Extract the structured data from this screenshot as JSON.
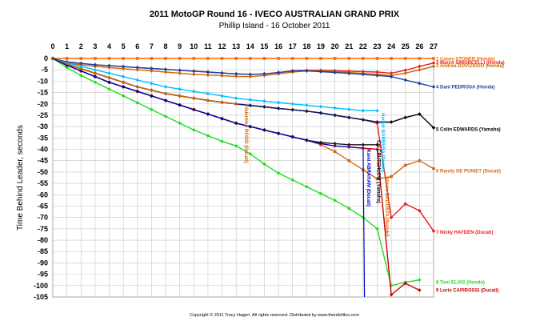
{
  "chart_data": {
    "type": "line",
    "title": "2011 MotoGP Round 16 - IVECO AUSTRALIAN GRAND PRIX",
    "subtitle": "Phillip Island - 16 October 2011",
    "ylabel": "Time Behind Leader, seconds",
    "xlim": [
      0,
      27
    ],
    "ylim": [
      -105,
      0
    ],
    "xticks": [
      0,
      1,
      2,
      3,
      4,
      5,
      6,
      7,
      8,
      9,
      10,
      11,
      12,
      13,
      14,
      15,
      16,
      17,
      18,
      19,
      20,
      21,
      22,
      23,
      24,
      25,
      26,
      27
    ],
    "yticks": [
      0,
      -5,
      -10,
      -15,
      -20,
      -25,
      -30,
      -35,
      -40,
      -45,
      -50,
      -55,
      -60,
      -65,
      -70,
      -75,
      -80,
      -85,
      -90,
      -95,
      -100,
      -105
    ],
    "grid": true,
    "copyright": "Copyright © 2011 Tracy Hagen. All rights reserved. Distributed by www.theridefiles.com",
    "series": [
      {
        "name": "1 Casey STONER (Honda)",
        "color": "#ff6600",
        "marker": "square",
        "end_label_y": -0.2,
        "x": [
          0,
          1,
          2,
          3,
          4,
          5,
          6,
          7,
          8,
          9,
          10,
          11,
          12,
          13,
          14,
          15,
          16,
          17,
          18,
          19,
          20,
          21,
          22,
          23,
          24,
          25,
          26,
          27
        ],
        "y": [
          0,
          0,
          0,
          0,
          0,
          0,
          0,
          0,
          0,
          0,
          0,
          0,
          0,
          0,
          0,
          0,
          0,
          0,
          0,
          0,
          0,
          0,
          0,
          0,
          0,
          0,
          0,
          0
        ]
      },
      {
        "name": "2 Marco SIMONCELLI (Honda)",
        "color": "#ee1c1c",
        "marker": "diamond",
        "end_label_y": -1.7,
        "x": [
          0,
          1,
          2,
          3,
          4,
          5,
          6,
          7,
          8,
          9,
          10,
          11,
          12,
          13,
          14,
          15,
          16,
          17,
          18,
          19,
          20,
          21,
          22,
          23,
          24,
          25,
          26,
          27
        ],
        "y": [
          0,
          -1.5,
          -2.2,
          -2.8,
          -3.2,
          -3.6,
          -4,
          -4.4,
          -4.8,
          -5.2,
          -5.6,
          -6,
          -6.4,
          -6.8,
          -7,
          -6.8,
          -6.2,
          -5.5,
          -5.2,
          -5.2,
          -5.4,
          -5.6,
          -5.8,
          -6,
          -6.5,
          -5.2,
          -3.5,
          -2
        ]
      },
      {
        "name": "3 Andrea DOVIZIOSO (Honda)",
        "color": "#cc6600",
        "marker": "diamond",
        "end_label_y": -3.2,
        "x": [
          0,
          1,
          2,
          3,
          4,
          5,
          6,
          7,
          8,
          9,
          10,
          11,
          12,
          13,
          14,
          15,
          16,
          17,
          18,
          19,
          20,
          21,
          22,
          23,
          24,
          25,
          26,
          27
        ],
        "y": [
          0,
          -2,
          -2.8,
          -3.5,
          -4,
          -4.5,
          -5,
          -5.5,
          -6,
          -6.5,
          -7,
          -7.3,
          -7.6,
          -7.9,
          -8,
          -7.5,
          -6.8,
          -6,
          -5.5,
          -5.5,
          -5.8,
          -6.2,
          -6.6,
          -7,
          -7.5,
          -6.5,
          -5,
          -3.5
        ]
      },
      {
        "name": "4 Dani PEDROSA (Honda)",
        "color": "#1f3fa0",
        "marker": "diamond",
        "end_label_y": -12.5,
        "x": [
          0,
          1,
          2,
          3,
          4,
          5,
          6,
          7,
          8,
          9,
          10,
          11,
          12,
          13,
          14,
          15,
          16,
          17,
          18,
          19,
          20,
          21,
          22,
          23,
          24,
          25,
          26,
          27
        ],
        "y": [
          0,
          -1.5,
          -2.2,
          -2.8,
          -3.2,
          -3.6,
          -4,
          -4.4,
          -4.8,
          -5.2,
          -5.6,
          -6,
          -6.4,
          -6.8,
          -7,
          -6.8,
          -6.2,
          -5.5,
          -5.5,
          -5.8,
          -6.2,
          -6.6,
          -7,
          -7.5,
          -8,
          -9.5,
          -11,
          -12.5
        ]
      },
      {
        "name": "5 Colin EDWARDS (Yamaha)",
        "color": "#000000",
        "marker": "diamond",
        "end_label_y": -31.2,
        "x": [
          0,
          1,
          2,
          3,
          4,
          5,
          6,
          7,
          8,
          9,
          10,
          11,
          12,
          13,
          14,
          15,
          16,
          17,
          18,
          19,
          20,
          21,
          22,
          23,
          24,
          25,
          26,
          27
        ],
        "y": [
          0,
          -2.5,
          -4.5,
          -6.5,
          -8.5,
          -10.5,
          -12.5,
          -14,
          -15.5,
          -16.5,
          -17.5,
          -18.5,
          -19.3,
          -20,
          -20.7,
          -21.3,
          -22,
          -22.6,
          -23.2,
          -24,
          -25,
          -26,
          -27,
          -28,
          -28,
          -26,
          -24.5,
          -30.5
        ]
      },
      {
        "name": "6 Randy DE PUNIET (Ducati)",
        "color": "#d2691e",
        "marker": "circle",
        "end_label_y": -49.5,
        "x": [
          0,
          1,
          2,
          3,
          4,
          5,
          6,
          7,
          8,
          9,
          10,
          11,
          12,
          13,
          14,
          15,
          16,
          17,
          18,
          19,
          20,
          21,
          22,
          23,
          24,
          25,
          26,
          27
        ],
        "y": [
          0,
          -3,
          -5.5,
          -8,
          -10.5,
          -12.5,
          -14.5,
          -16.5,
          -18.5,
          -20.5,
          -22.5,
          -24.5,
          -26.5,
          -28.5,
          -30,
          -31.5,
          -33,
          -34.5,
          -36,
          -38,
          -41,
          -45,
          -49,
          -53,
          -52,
          -47,
          -45,
          -48.5
        ]
      },
      {
        "name": "7 Nicky HAYDEN (Ducati)",
        "color": "#ee1c1c",
        "marker": "diamond",
        "end_label_y": -76.5,
        "x": [
          0,
          1,
          2,
          3,
          4,
          5,
          6,
          7,
          8,
          9,
          10,
          11,
          12,
          13,
          14,
          15,
          16,
          17,
          18,
          19,
          20,
          21,
          22,
          23,
          24,
          25,
          26,
          27
        ],
        "y": [
          0,
          -2.5,
          -4.5,
          -6.5,
          -8.5,
          -10.5,
          -12.5,
          -14,
          -15.5,
          -16.5,
          -17.5,
          -18.5,
          -19.3,
          -20,
          -20.7,
          -21.3,
          -22,
          -22.6,
          -23.2,
          -24,
          -25,
          -26,
          -27,
          -28.5,
          -70,
          -64,
          -67,
          -76
        ]
      },
      {
        "name": "8 Toni ELIAS (Honda)",
        "color": "#22dd22",
        "marker": "diamond",
        "end_label_y": -98.5,
        "x": [
          0,
          1,
          2,
          3,
          4,
          5,
          6,
          7,
          8,
          9,
          10,
          11,
          12,
          13,
          14,
          15,
          16,
          17,
          18,
          19,
          20,
          21,
          22,
          23,
          24,
          25,
          26
        ],
        "y": [
          0,
          -4,
          -7.5,
          -10.5,
          -13.5,
          -16.5,
          -19.5,
          -22.5,
          -25.5,
          -28.5,
          -31.5,
          -34,
          -36.5,
          -38.5,
          -42,
          -46.5,
          -50.5,
          -53.5,
          -56.5,
          -59.5,
          -62.5,
          -66,
          -70,
          -75,
          -100,
          -98.5,
          -97.5
        ]
      },
      {
        "name": "9 Loris CAPIROSSI (Ducati)",
        "color": "#cc0000",
        "marker": "diamond",
        "end_label_y": -102,
        "x": [
          0,
          1,
          2,
          3,
          4,
          5,
          6,
          7,
          8,
          9,
          10,
          11,
          12,
          13,
          14,
          15,
          16,
          17,
          18,
          19,
          20,
          21,
          22,
          23,
          24,
          25,
          26
        ],
        "y": [
          0,
          -3,
          -5.5,
          -8,
          -10.5,
          -12.5,
          -14.5,
          -16.5,
          -18.5,
          -20.5,
          -22.5,
          -24.5,
          -26.5,
          -28.5,
          -30,
          -31.5,
          -33,
          -34.5,
          -36,
          -37.5,
          -38.5,
          -39,
          -39.5,
          -40,
          -104,
          -99,
          -102
        ]
      },
      {
        "name": "",
        "color": "#00bfff",
        "marker": "diamond",
        "x": [
          0,
          1,
          2,
          3,
          4,
          5,
          6,
          7,
          8,
          9,
          10,
          11,
          12,
          13,
          14,
          15,
          16,
          17,
          18,
          19,
          20,
          21,
          22,
          23
        ],
        "y": [
          0,
          -2,
          -3.5,
          -5,
          -6.5,
          -8,
          -9.5,
          -11,
          -12.5,
          -13.5,
          -14.5,
          -15.5,
          -16.5,
          -17.5,
          -18.2,
          -18.8,
          -19.4,
          -20,
          -20.6,
          -21.2,
          -21.8,
          -22.4,
          -23,
          -23
        ]
      },
      {
        "name": "",
        "color": "#001f60",
        "marker": "diamond",
        "x": [
          0,
          1,
          2,
          3,
          4,
          5,
          6,
          7,
          8,
          9,
          10,
          11,
          12,
          13,
          14,
          15,
          16,
          17,
          18,
          19,
          20,
          21,
          22,
          23
        ],
        "y": [
          0,
          -2.5,
          -4.5,
          -6.5,
          -8.5,
          -10.5,
          -12.5,
          -14,
          -15.5,
          -16.5,
          -17.5,
          -18.5,
          -19.3,
          -20,
          -20.7,
          -21.3,
          -22,
          -22.6,
          -23.2,
          -24,
          -25,
          -26,
          -27,
          -28
        ]
      },
      {
        "name": "",
        "color": "#1a1a1a",
        "marker": "diamond",
        "x": [
          0,
          1,
          2,
          3,
          4,
          5,
          6,
          7,
          8,
          9,
          10,
          11,
          12,
          13,
          14,
          15,
          16,
          17,
          18,
          19,
          20,
          21,
          22,
          23
        ],
        "y": [
          0,
          -3,
          -5.5,
          -8,
          -10.5,
          -12.5,
          -14.5,
          -16.5,
          -18.5,
          -20.5,
          -22.5,
          -24.5,
          -26.5,
          -28.5,
          -30,
          -31.5,
          -33,
          -34.5,
          -36,
          -37,
          -37.5,
          -38,
          -38,
          -38
        ]
      },
      {
        "name": "",
        "color": "#cc6600",
        "marker": "diamond",
        "x": [
          0,
          1,
          2,
          3,
          4,
          5,
          6,
          7,
          8,
          9,
          10,
          11,
          12,
          13
        ],
        "y": [
          0,
          -2.5,
          -4.5,
          -6.5,
          -8.5,
          -10.5,
          -12.5,
          -14,
          -15.5,
          -16.5,
          -17.5,
          -18.5,
          -19.3,
          -20
        ]
      },
      {
        "name": "",
        "color": "#0000cc",
        "marker": "none",
        "x": [
          0,
          1,
          2,
          3,
          4,
          5,
          6,
          7,
          8,
          9,
          10,
          11,
          12,
          13,
          14,
          15,
          16,
          17,
          18,
          19,
          20,
          21,
          22,
          22.1
        ],
        "y": [
          0,
          -3,
          -5.5,
          -8,
          -10.5,
          -12.5,
          -14.5,
          -16.5,
          -18.5,
          -20.5,
          -22.5,
          -24.5,
          -26.5,
          -28.5,
          -30,
          -31.5,
          -33,
          -34.5,
          -36,
          -37.5,
          -38.5,
          -39,
          -39.5,
          -105
        ]
      }
    ],
    "annotations": [
      {
        "text": "Valentino ROSSI (Ducati)",
        "x": 13.6,
        "y": -21,
        "color": "#cc6600"
      },
      {
        "text": "Karel ABRAHAM (Ducati)",
        "x": 22.3,
        "y": -40,
        "color": "#0000cc"
      },
      {
        "text": "Cal CRUTCHLOW (Yamaha)",
        "x": 23.0,
        "y": -36,
        "color": "#000000"
      },
      {
        "text": "Hector BARBERA (Ducati)",
        "x": 23.3,
        "y": -24,
        "color": "#00bfff"
      },
      {
        "text": "Alvaro BAUTISTA (Suzuki)",
        "x": 23.6,
        "y": -52,
        "color": "#cc6600"
      }
    ]
  }
}
